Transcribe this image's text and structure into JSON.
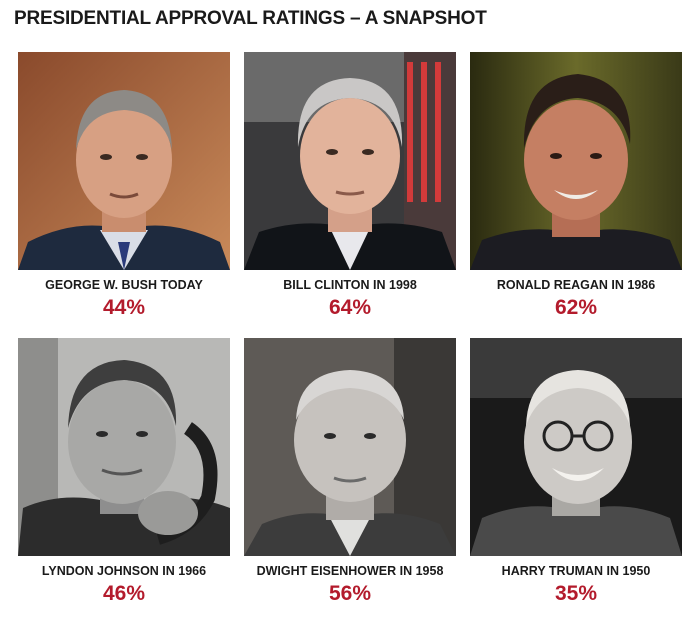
{
  "title": "PRESIDENTIAL APPROVAL RATINGS – A SNAPSHOT",
  "presidents": [
    {
      "name": "GEORGE W. BUSH TODAY",
      "rating": "44%",
      "rating_value": 44
    },
    {
      "name": "BILL CLINTON IN 1998",
      "rating": "64%",
      "rating_value": 64
    },
    {
      "name": "RONALD REAGAN IN 1986",
      "rating": "62%",
      "rating_value": 62
    },
    {
      "name": "LYNDON JOHNSON IN 1966",
      "rating": "46%",
      "rating_value": 46
    },
    {
      "name": "DWIGHT EISENHOWER IN 1958",
      "rating": "56%",
      "rating_value": 56
    },
    {
      "name": "HARRY TRUMAN IN 1950",
      "rating": "35%",
      "rating_value": 35
    }
  ],
  "colors": {
    "rating": "#b31b2c",
    "title": "#1a1a1a"
  }
}
